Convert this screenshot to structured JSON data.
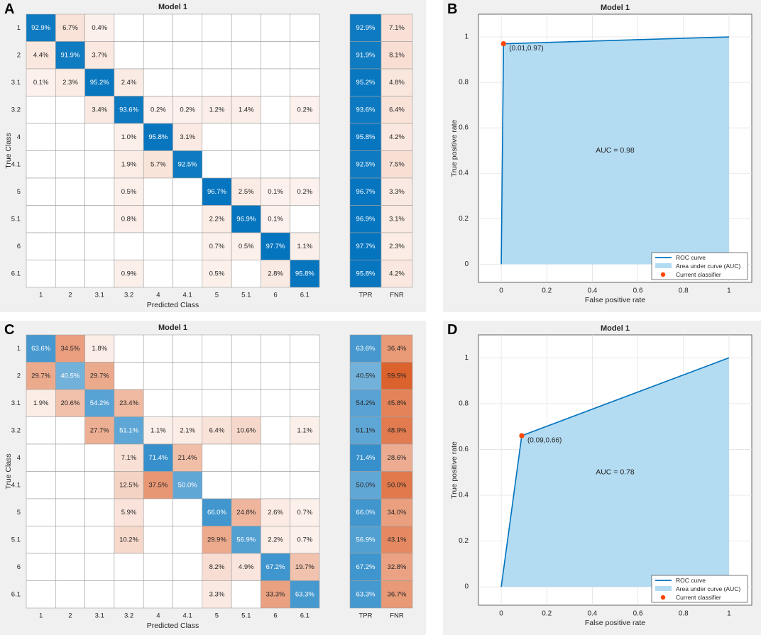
{
  "panels": {
    "A": {
      "label": "A"
    },
    "B": {
      "label": "B"
    },
    "C": {
      "label": "C"
    },
    "D": {
      "label": "D"
    }
  },
  "colors": {
    "blue_dark": "#0072bd",
    "orange_dark": "#d95319",
    "auc_fill": "#b3dbf2",
    "roc_line": "#0072bd",
    "point": "#ff4500"
  },
  "chart_data": [
    {
      "id": "A",
      "type": "heatmap",
      "title": "Model 1",
      "xlabel": "Predicted Class",
      "ylabel": "True Class",
      "classes": [
        "1",
        "2",
        "3.1",
        "3.2",
        "4",
        "4.1",
        "5",
        "5.1",
        "6",
        "6.1"
      ],
      "matrix": [
        [
          "92.9%",
          "6.7%",
          "0.4%",
          "",
          "",
          "",
          "",
          "",
          "",
          ""
        ],
        [
          "4.4%",
          "91.9%",
          "3.7%",
          "",
          "",
          "",
          "",
          "",
          "",
          ""
        ],
        [
          "0.1%",
          "2.3%",
          "95.2%",
          "2.4%",
          "",
          "",
          "",
          "",
          "",
          ""
        ],
        [
          "",
          "",
          "3.4%",
          "93.6%",
          "0.2%",
          "0.2%",
          "1.2%",
          "1.4%",
          "",
          "0.2%"
        ],
        [
          "",
          "",
          "",
          "1.0%",
          "95.8%",
          "3.1%",
          "",
          "",
          "",
          ""
        ],
        [
          "",
          "",
          "",
          "1.9%",
          "5.7%",
          "92.5%",
          "",
          "",
          "",
          ""
        ],
        [
          "",
          "",
          "",
          "0.5%",
          "",
          "",
          "96.7%",
          "2.5%",
          "0.1%",
          "0.2%"
        ],
        [
          "",
          "",
          "",
          "0.8%",
          "",
          "",
          "2.2%",
          "96.9%",
          "0.1%",
          ""
        ],
        [
          "",
          "",
          "",
          "",
          "",
          "",
          "0.7%",
          "0.5%",
          "97.7%",
          "1.1%"
        ],
        [
          "",
          "",
          "",
          "0.9%",
          "",
          "",
          "0.5%",
          "",
          "2.8%",
          "95.8%"
        ]
      ],
      "summary_headers": [
        "TPR",
        "FNR"
      ],
      "tpr": [
        "92.9%",
        "91.9%",
        "95.2%",
        "93.6%",
        "95.8%",
        "92.5%",
        "96.7%",
        "96.9%",
        "97.7%",
        "95.8%"
      ],
      "fnr": [
        "7.1%",
        "8.1%",
        "4.8%",
        "6.4%",
        "4.2%",
        "7.5%",
        "3.3%",
        "3.1%",
        "2.3%",
        "4.2%"
      ]
    },
    {
      "id": "B",
      "type": "area",
      "title": "Model 1",
      "xlabel": "False positive rate",
      "ylabel": "True positive rate",
      "xlim": [
        -0.1,
        1.1
      ],
      "ylim": [
        -0.08,
        1.1
      ],
      "xticks": [
        "0",
        "0.2",
        "0.4",
        "0.6",
        "0.8",
        "1"
      ],
      "yticks": [
        "0",
        "0.2",
        "0.4",
        "0.6",
        "0.8",
        "1"
      ],
      "roc_x": [
        0,
        0.01,
        1
      ],
      "roc_y": [
        0,
        0.97,
        1
      ],
      "point": [
        0.01,
        0.97
      ],
      "point_label": "(0.01,0.97)",
      "auc_label": "AUC = 0.98",
      "legend": [
        "ROC curve",
        "Area under curve (AUC)",
        "Current classifier"
      ],
      "legend_position": "bottom-right"
    },
    {
      "id": "C",
      "type": "heatmap",
      "title": "Model 1",
      "xlabel": "Predicted Class",
      "ylabel": "True Class",
      "classes": [
        "1",
        "2",
        "3.1",
        "3.2",
        "4",
        "4.1",
        "5",
        "5.1",
        "6",
        "6.1"
      ],
      "matrix": [
        [
          "63.6%",
          "34.5%",
          "1.8%",
          "",
          "",
          "",
          "",
          "",
          "",
          ""
        ],
        [
          "29.7%",
          "40.5%",
          "29.7%",
          "",
          "",
          "",
          "",
          "",
          "",
          ""
        ],
        [
          "1.9%",
          "20.6%",
          "54.2%",
          "23.4%",
          "",
          "",
          "",
          "",
          "",
          ""
        ],
        [
          "",
          "",
          "27.7%",
          "51.1%",
          "1.1%",
          "2.1%",
          "6.4%",
          "10.6%",
          "",
          "1.1%"
        ],
        [
          "",
          "",
          "",
          "7.1%",
          "71.4%",
          "21.4%",
          "",
          "",
          "",
          ""
        ],
        [
          "",
          "",
          "",
          "12.5%",
          "37.5%",
          "50.0%",
          "",
          "",
          "",
          ""
        ],
        [
          "",
          "",
          "",
          "5.9%",
          "",
          "",
          "66.0%",
          "24.8%",
          "2.6%",
          "0.7%"
        ],
        [
          "",
          "",
          "",
          "10.2%",
          "",
          "",
          "29.9%",
          "56.9%",
          "2.2%",
          "0.7%"
        ],
        [
          "",
          "",
          "",
          "",
          "",
          "",
          "8.2%",
          "4.9%",
          "67.2%",
          "19.7%"
        ],
        [
          "",
          "",
          "",
          "",
          "",
          "",
          "3.3%",
          "",
          "33.3%",
          "63.3%"
        ]
      ],
      "summary_headers": [
        "TPR",
        "FNR"
      ],
      "tpr": [
        "63.6%",
        "40.5%",
        "54.2%",
        "51.1%",
        "71.4%",
        "50.0%",
        "66.0%",
        "56.9%",
        "67.2%",
        "63.3%"
      ],
      "fnr": [
        "36.4%",
        "59.5%",
        "45.8%",
        "48.9%",
        "28.6%",
        "50.0%",
        "34.0%",
        "43.1%",
        "32.8%",
        "36.7%"
      ]
    },
    {
      "id": "D",
      "type": "area",
      "title": "Model 1",
      "xlabel": "False positive rate",
      "ylabel": "True positive rate",
      "xlim": [
        -0.1,
        1.1
      ],
      "ylim": [
        -0.08,
        1.1
      ],
      "xticks": [
        "0",
        "0.2",
        "0.4",
        "0.6",
        "0.8",
        "1"
      ],
      "yticks": [
        "0",
        "0.2",
        "0.4",
        "0.6",
        "0.8",
        "1"
      ],
      "roc_x": [
        0,
        0.09,
        1
      ],
      "roc_y": [
        0,
        0.66,
        1
      ],
      "point": [
        0.09,
        0.66
      ],
      "point_label": "(0.09,0.66)",
      "auc_label": "AUC = 0.78",
      "legend": [
        "ROC curve",
        "Area under curve (AUC)",
        "Current classifier"
      ],
      "legend_position": "bottom-right"
    }
  ]
}
